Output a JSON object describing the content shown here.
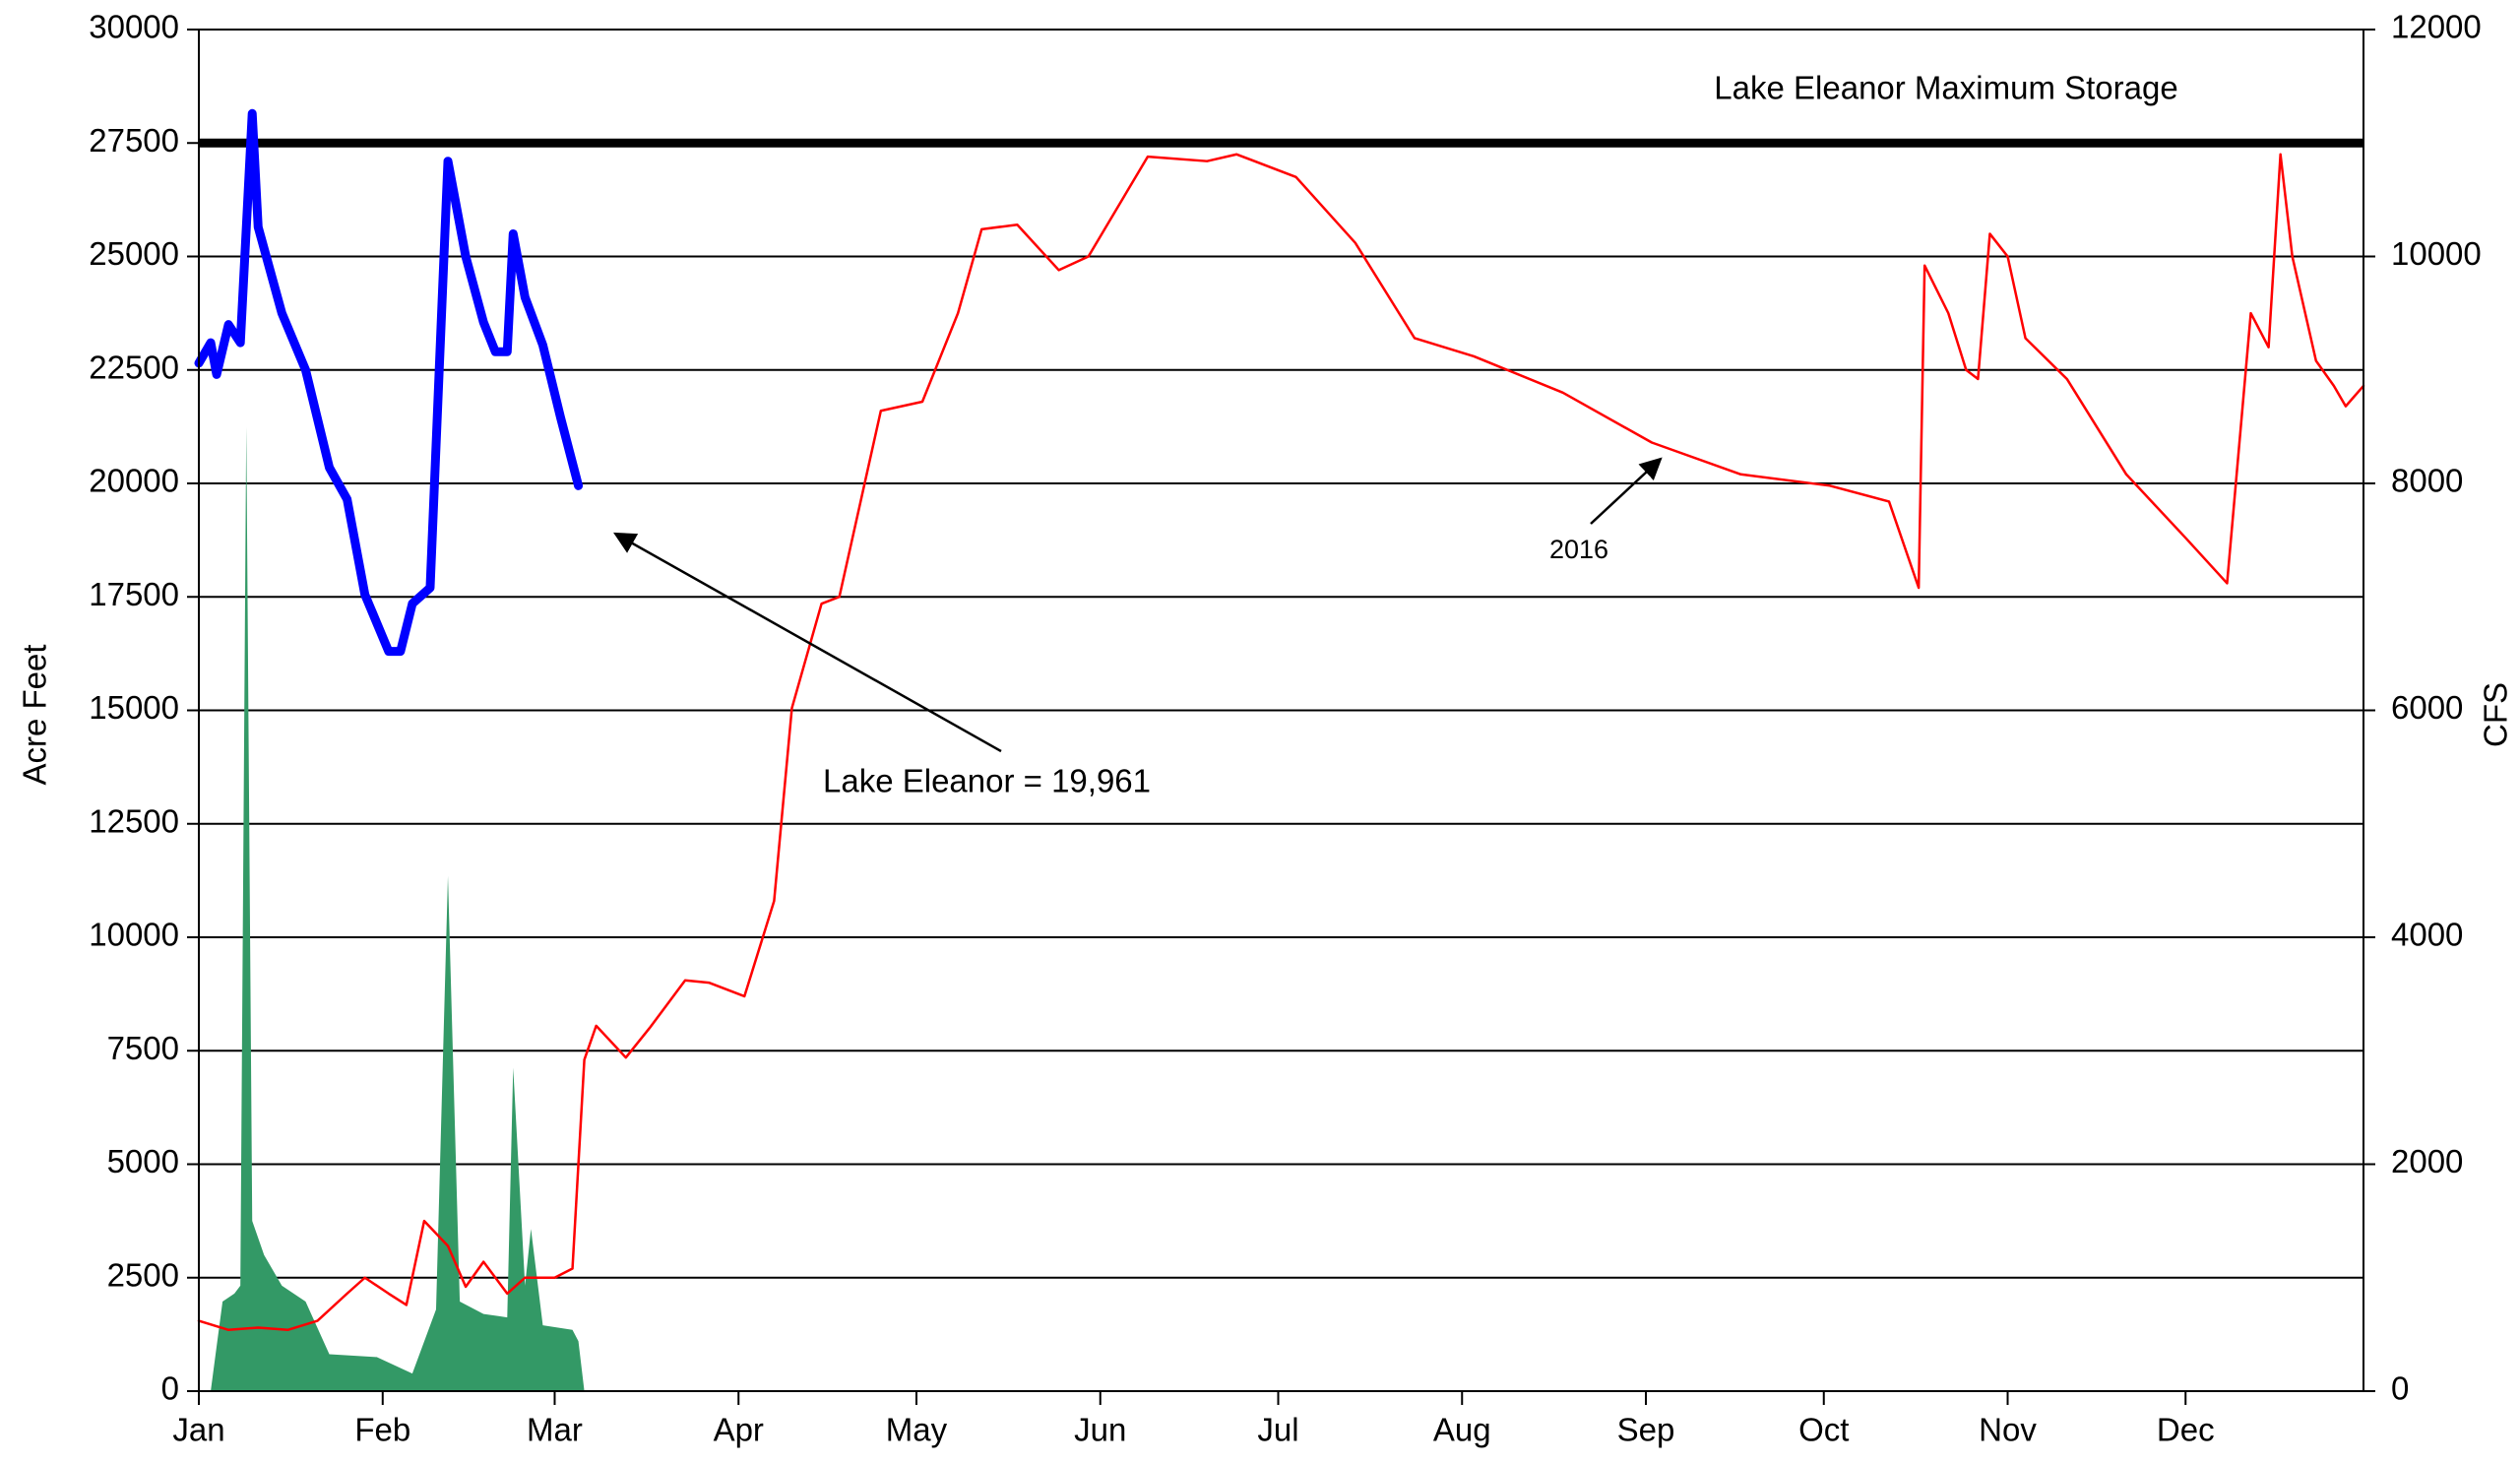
{
  "chart_data": {
    "type": "line",
    "ylabel": "Acre Feet",
    "y2label": "CFS",
    "xlim": [
      0,
      365
    ],
    "xticks": [
      {
        "value": 0,
        "label": "Jan"
      },
      {
        "value": 31,
        "label": "Feb"
      },
      {
        "value": 60,
        "label": "Mar"
      },
      {
        "value": 91,
        "label": "Apr"
      },
      {
        "value": 121,
        "label": "May"
      },
      {
        "value": 152,
        "label": "Jun"
      },
      {
        "value": 182,
        "label": "Jul"
      },
      {
        "value": 213,
        "label": "Aug"
      },
      {
        "value": 244,
        "label": "Sep"
      },
      {
        "value": 274,
        "label": "Oct"
      },
      {
        "value": 305,
        "label": "Nov"
      },
      {
        "value": 335,
        "label": "Dec"
      }
    ],
    "ylim": [
      0,
      30000
    ],
    "yticks": [
      0,
      2500,
      5000,
      7500,
      10000,
      12500,
      15000,
      17500,
      20000,
      22500,
      25000,
      27500,
      30000
    ],
    "y2lim": [
      0,
      12000
    ],
    "y2ticks": [
      0,
      2000,
      4000,
      6000,
      8000,
      10000,
      12000
    ],
    "grid": true,
    "max_storage": 27500,
    "annotations": [
      "Lake Eleanor Maximum Storage",
      "Lake Eleanor = 19,961",
      "2016"
    ],
    "series": [
      {
        "type": "area",
        "color": "#339966",
        "axis": "y2",
        "x": [
          2,
          4,
          6,
          7,
          8,
          9,
          11,
          14,
          18,
          22,
          30,
          36,
          40,
          42,
          44,
          48,
          52,
          53,
          55,
          56,
          58,
          63,
          64,
          65
        ],
        "values": [
          0,
          790,
          860,
          930,
          8500,
          1500,
          1200,
          930,
          790,
          325,
          300,
          155,
          720,
          4540,
          790,
          680,
          650,
          2850,
          930,
          1430,
          580,
          540,
          440,
          0
        ]
      },
      {
        "name": "2016",
        "type": "line",
        "color": "#ff0000",
        "axis": "y",
        "x": [
          0,
          5,
          10,
          15,
          20,
          25,
          28,
          32,
          35,
          38,
          42,
          45,
          48,
          52,
          55,
          60,
          63,
          65,
          67,
          72,
          76,
          82,
          86,
          92,
          97,
          100,
          105,
          108,
          115,
          122,
          128,
          132,
          138,
          145,
          150,
          160,
          170,
          175,
          185,
          195,
          205,
          215,
          230,
          245,
          260,
          275,
          285,
          290,
          291,
          295,
          298,
          300,
          302,
          305,
          308,
          315,
          325,
          335,
          342,
          346,
          349,
          351,
          353,
          357,
          360,
          362,
          365
        ],
        "values": [
          1550,
          1350,
          1400,
          1350,
          1550,
          2150,
          2500,
          2150,
          1900,
          3750,
          3200,
          2300,
          2850,
          2150,
          2500,
          2500,
          2700,
          7300,
          8050,
          7350,
          8000,
          9050,
          9000,
          8700,
          10800,
          15050,
          17350,
          17500,
          21600,
          21800,
          23750,
          25600,
          25700,
          24700,
          25000,
          27200,
          27100,
          27250,
          26750,
          25300,
          23200,
          22800,
          22000,
          20900,
          20200,
          19950,
          19600,
          17700,
          24800,
          23750,
          22500,
          22300,
          25500,
          25000,
          23200,
          22300,
          20200,
          18800,
          17800,
          23750,
          23000,
          27250,
          25000,
          22700,
          22150,
          21700,
          22150
        ]
      },
      {
        "type": "line",
        "color": "#0000ff",
        "axis": "y",
        "x": [
          0,
          2,
          3,
          5,
          7,
          9,
          10,
          14,
          18,
          22,
          25,
          28,
          32,
          34,
          36,
          39,
          42,
          45,
          48,
          50,
          52,
          53,
          55,
          58,
          61,
          64
        ],
        "values": [
          22650,
          23100,
          22400,
          23500,
          23100,
          28150,
          25650,
          23750,
          22500,
          20350,
          19650,
          17550,
          16300,
          16300,
          17350,
          17700,
          27100,
          25000,
          23550,
          22900,
          22900,
          25500,
          24100,
          23050,
          21450,
          19950
        ]
      }
    ]
  }
}
